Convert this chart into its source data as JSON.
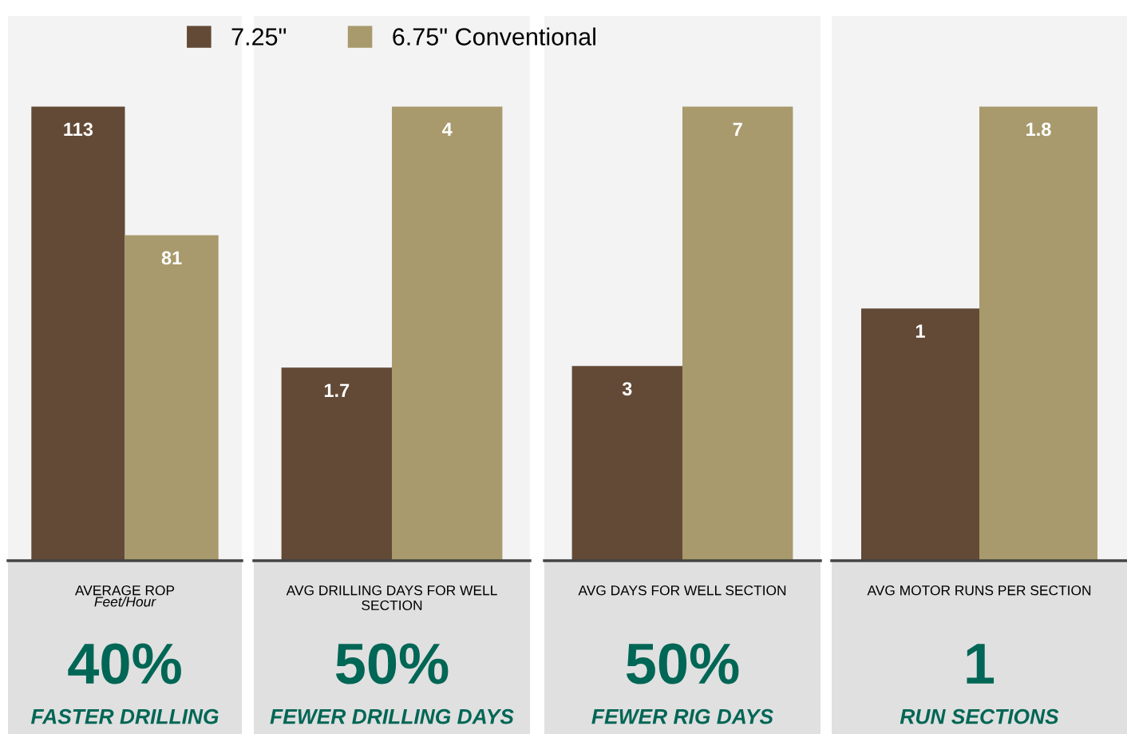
{
  "chart_data": [
    {
      "type": "bar",
      "categories": [
        null
      ],
      "xlabel": "AVERAGE ROP",
      "tick_labels": "x",
      "data_labels": true,
      "annotations": [
        "Feet/Hour",
        "40%",
        "FASTER DRILLING"
      ],
      "series": [
        {
          "color": "#634a36",
          "values": [
            113
          ]
        },
        {
          "color": "#a89a6c",
          "values": [
            81
          ]
        }
      ]
    },
    {
      "type": "bar",
      "categories": [
        null
      ],
      "xlabel": "AVG DRILLING DAYS FOR WELL\nSECTION",
      "tick_labels": "x",
      "data_labels": true,
      "legend": "top",
      "annotations": [
        "50%",
        "FEWER DRILLING DAYS"
      ],
      "series": [
        {
          "name": "7.25\"",
          "color": "#634a36",
          "values": [
            1.7
          ]
        },
        {
          "name": "6.75\" Conventional",
          "color": "#a89a6c",
          "values": [
            4
          ]
        }
      ]
    },
    {
      "type": "bar",
      "categories": [
        null
      ],
      "xlabel": "AVG DAYS FOR WELL SECTION",
      "tick_labels": "x",
      "data_labels": true,
      "annotations": [
        "50%",
        "FEWER RIG DAYS"
      ],
      "series": [
        {
          "color": "#634a36",
          "values": [
            3
          ]
        },
        {
          "color": "#a89a6c",
          "values": [
            7
          ]
        }
      ]
    },
    {
      "type": "bar",
      "categories": [
        null
      ],
      "xlabel": "AVG MOTOR RUNS PER SECTION",
      "tick_labels": "x",
      "data_labels": true,
      "annotations": [
        "1",
        "RUN SECTIONS"
      ],
      "series": [
        {
          "color": "#634a36",
          "values": [
            1
          ]
        },
        {
          "color": "#a89a6c",
          "values": [
            1.8
          ]
        }
      ]
    }
  ]
}
